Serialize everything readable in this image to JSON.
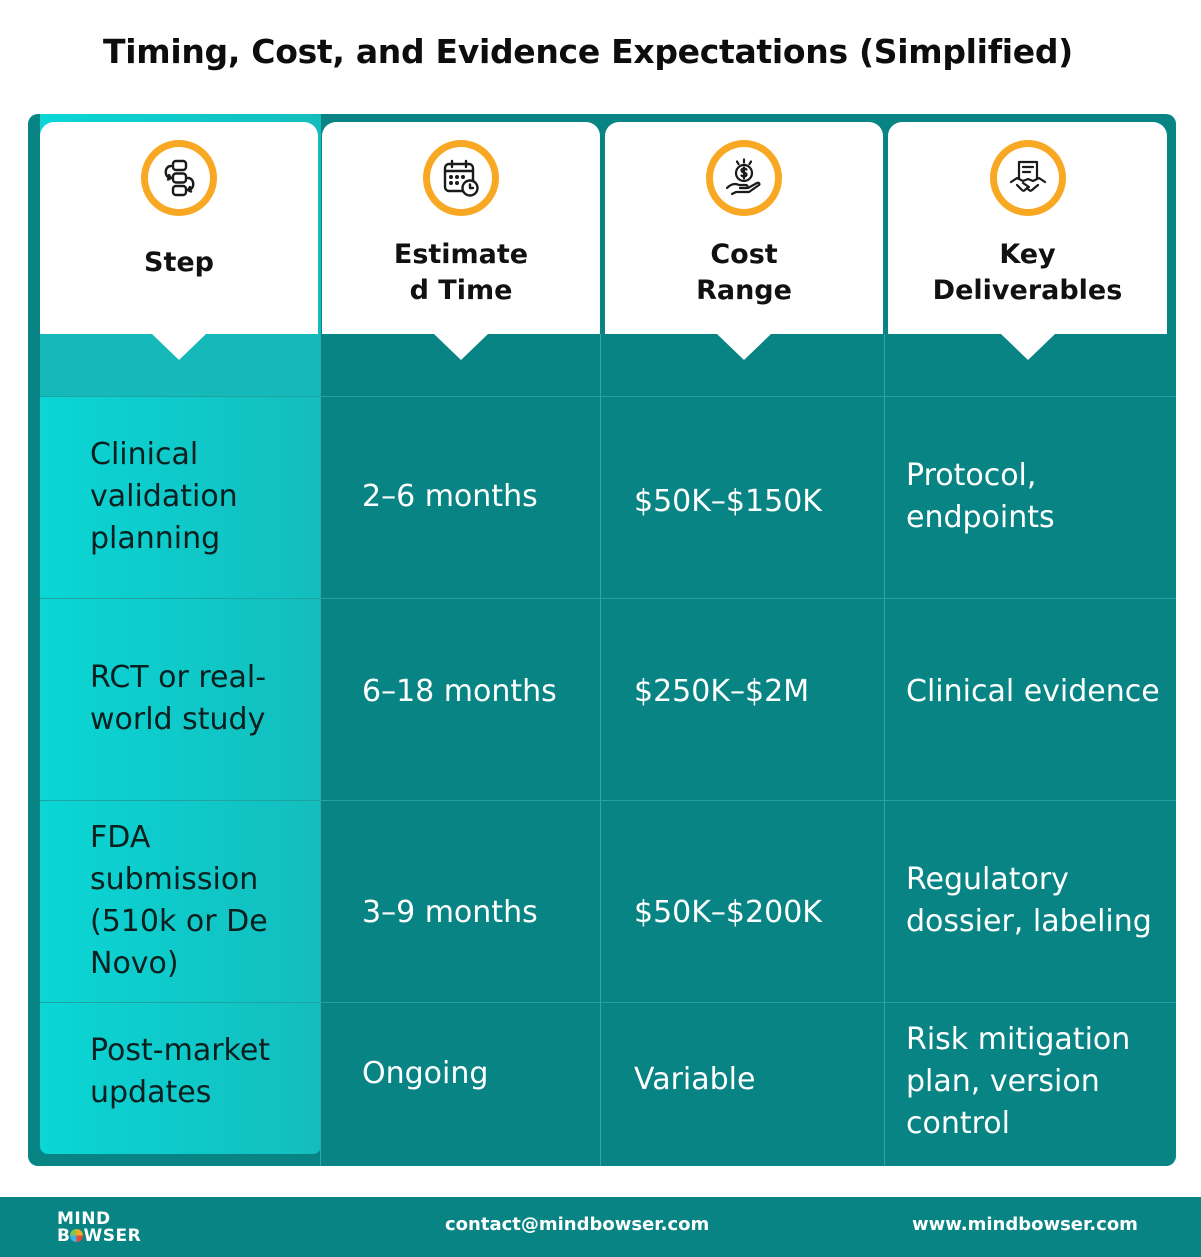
{
  "title": "Timing, Cost, and Evidence Expectations (Simplified)",
  "columns": [
    {
      "label_lines": [
        "Step"
      ],
      "icon": "process-flow-icon"
    },
    {
      "label_lines": [
        "Estimate",
        "d Time"
      ],
      "icon": "calendar-clock-icon"
    },
    {
      "label_lines": [
        "Cost",
        "Range"
      ],
      "icon": "hand-dollar-icon"
    },
    {
      "label_lines": [
        "Key",
        "Deliverables"
      ],
      "icon": "handshake-document-icon"
    }
  ],
  "rows": [
    {
      "step": "Clinical validation planning",
      "time": "2–6 months",
      "cost": "$50K–$150K",
      "deliverables": "Protocol, endpoints"
    },
    {
      "step": "RCT or real-world study",
      "time": "6–18 months",
      "cost": "$250K–$2M",
      "deliverables": "Clinical evidence"
    },
    {
      "step": "FDA submission (510k or De Novo)",
      "time": "3–9 months",
      "cost": "$50K–$200K",
      "deliverables": "Regulatory dossier, labeling"
    },
    {
      "step": "Post-market updates",
      "time": "Ongoing",
      "cost": "Variable",
      "deliverables": "Risk mitigation plan, version control"
    }
  ],
  "footer": {
    "logo_line1": "MIND",
    "logo_line2_a": "B",
    "logo_line2_b": "WSER",
    "contact": "contact@mindbowser.com",
    "website": "www.mindbowser.com"
  },
  "colors": {
    "teal": "#088484",
    "step_column": "#0ad6d6",
    "icon_ring": "#f8a823"
  }
}
